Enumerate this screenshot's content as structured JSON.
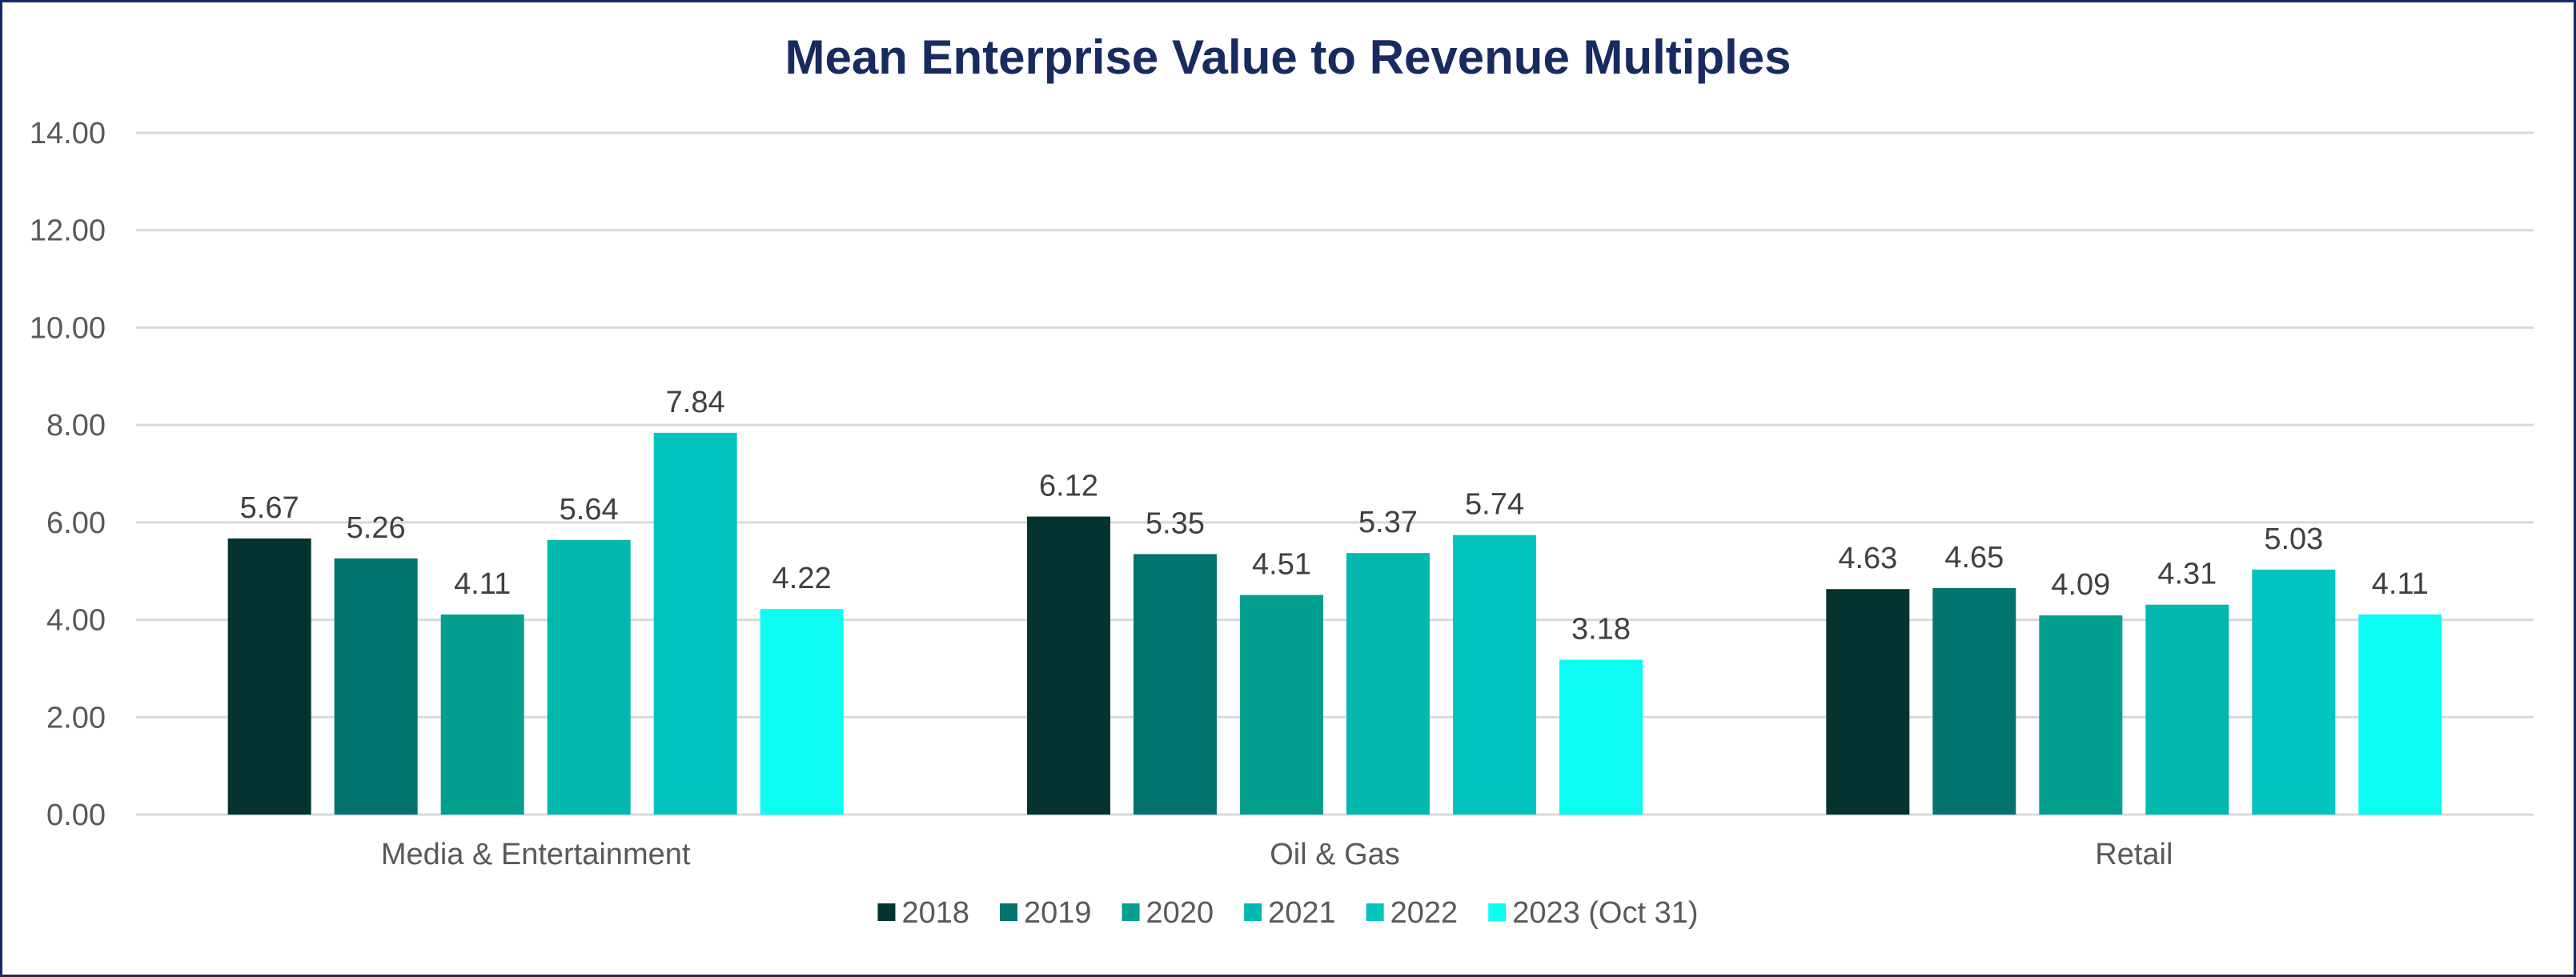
{
  "chart_data": {
    "type": "bar",
    "title": "Mean Enterprise Value to Revenue Multiples",
    "xlabel": "",
    "ylabel": "",
    "ylim": [
      0,
      14
    ],
    "yticks": [
      "0.00",
      "2.00",
      "4.00",
      "6.00",
      "8.00",
      "10.00",
      "12.00",
      "14.00"
    ],
    "grid": true,
    "legend_position": "bottom",
    "categories": [
      "Media & Entertainment",
      "Oil & Gas",
      "Retail"
    ],
    "series": [
      {
        "name": "2018",
        "color": "#043330",
        "values": [
          5.67,
          6.12,
          4.63
        ],
        "labels": [
          "5.67",
          "6.12",
          "4.63"
        ]
      },
      {
        "name": "2019",
        "color": "#037370",
        "values": [
          5.26,
          5.35,
          4.65
        ],
        "labels": [
          "5.26",
          "5.35",
          "4.65"
        ]
      },
      {
        "name": "2020",
        "color": "#03A090",
        "values": [
          4.11,
          4.51,
          4.09
        ],
        "labels": [
          "4.11",
          "4.51",
          "4.09"
        ]
      },
      {
        "name": "2021",
        "color": "#03B8AE",
        "values": [
          5.64,
          5.37,
          4.31
        ],
        "labels": [
          "5.64",
          "5.37",
          "4.31"
        ]
      },
      {
        "name": "2022",
        "color": "#03C4BE",
        "values": [
          7.84,
          5.74,
          5.03
        ],
        "labels": [
          "7.84",
          "5.74",
          "5.03"
        ]
      },
      {
        "name": "2023 (Oct 31)",
        "color": "#0CFCF4",
        "values": [
          4.22,
          3.18,
          4.11
        ],
        "labels": [
          "4.22",
          "3.18",
          "4.11"
        ]
      }
    ]
  }
}
